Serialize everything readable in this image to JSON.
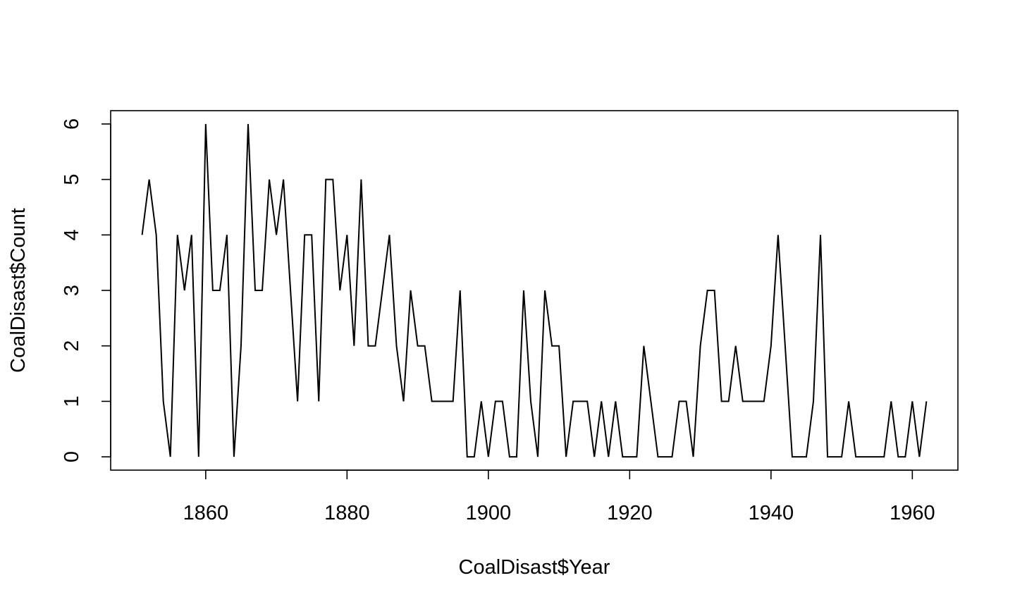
{
  "chart_data": {
    "type": "line",
    "title": "",
    "xlabel": "CoalDisast$Year",
    "ylabel": "CoalDisast$Count",
    "xlim": [
      1846.55,
      1966.45
    ],
    "ylim": [
      -0.24,
      6.24
    ],
    "x_ticks": [
      1860,
      1880,
      1900,
      1920,
      1940,
      1960
    ],
    "y_ticks": [
      0,
      1,
      2,
      3,
      4,
      5,
      6
    ],
    "grid": false,
    "x": [
      1851,
      1852,
      1853,
      1854,
      1855,
      1856,
      1857,
      1858,
      1859,
      1860,
      1861,
      1862,
      1863,
      1864,
      1865,
      1866,
      1867,
      1868,
      1869,
      1870,
      1871,
      1872,
      1873,
      1874,
      1875,
      1876,
      1877,
      1878,
      1879,
      1880,
      1881,
      1882,
      1883,
      1884,
      1885,
      1886,
      1887,
      1888,
      1889,
      1890,
      1891,
      1892,
      1893,
      1894,
      1895,
      1896,
      1897,
      1898,
      1899,
      1900,
      1901,
      1902,
      1903,
      1904,
      1905,
      1906,
      1907,
      1908,
      1909,
      1910,
      1911,
      1912,
      1913,
      1914,
      1915,
      1916,
      1917,
      1918,
      1919,
      1920,
      1921,
      1922,
      1923,
      1924,
      1925,
      1926,
      1927,
      1928,
      1929,
      1930,
      1931,
      1932,
      1933,
      1934,
      1935,
      1936,
      1937,
      1938,
      1939,
      1940,
      1941,
      1942,
      1943,
      1944,
      1945,
      1946,
      1947,
      1948,
      1949,
      1950,
      1951,
      1952,
      1953,
      1954,
      1955,
      1956,
      1957,
      1958,
      1959,
      1960,
      1961,
      1962
    ],
    "series": [
      {
        "values": [
          4,
          5,
          4,
          1,
          0,
          4,
          3,
          4,
          0,
          6,
          3,
          3,
          4,
          0,
          2,
          6,
          3,
          3,
          5,
          4,
          5,
          3,
          1,
          4,
          4,
          1,
          5,
          5,
          3,
          4,
          2,
          5,
          2,
          2,
          3,
          4,
          2,
          1,
          3,
          2,
          2,
          1,
          1,
          1,
          1,
          3,
          0,
          0,
          1,
          0,
          1,
          1,
          0,
          0,
          3,
          1,
          0,
          3,
          2,
          2,
          0,
          1,
          1,
          1,
          0,
          1,
          0,
          1,
          0,
          0,
          0,
          2,
          1,
          0,
          0,
          0,
          1,
          1,
          0,
          2,
          3,
          3,
          1,
          1,
          2,
          1,
          1,
          1,
          1,
          2,
          4,
          2,
          0,
          0,
          0,
          1,
          4,
          0,
          0,
          0,
          1,
          0,
          0,
          0,
          0,
          0,
          1,
          0,
          0,
          1,
          0,
          1
        ]
      }
    ]
  }
}
